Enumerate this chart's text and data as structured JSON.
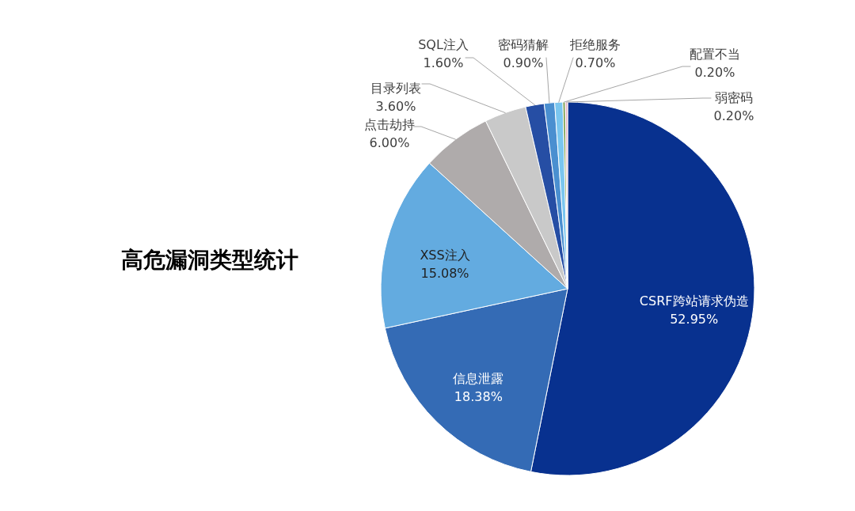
{
  "chart_data": {
    "type": "pie",
    "title": "高危漏洞类型统计",
    "categories": [
      "CSRF跨站请求伪造",
      "信息泄露",
      "XSS注入",
      "点击劫持",
      "目录列表",
      "SQL注入",
      "密码猜解",
      "拒绝服务",
      "配置不当",
      "弱密码"
    ],
    "values": [
      52.95,
      18.38,
      15.08,
      6.0,
      3.6,
      1.6,
      0.9,
      0.7,
      0.2,
      0.2
    ],
    "value_labels": [
      "52.95%",
      "18.38%",
      "15.08%",
      "6.00%",
      "3.60%",
      "1.60%",
      "0.90%",
      "0.70%",
      "0.20%",
      "0.20%"
    ],
    "colors": [
      "#08318f",
      "#346bb5",
      "#63abe0",
      "#afabab",
      "#c9c9c9",
      "#264ea4",
      "#4a8fd0",
      "#7ac6ef",
      "#6f963e",
      "#e6b8c8"
    ]
  }
}
